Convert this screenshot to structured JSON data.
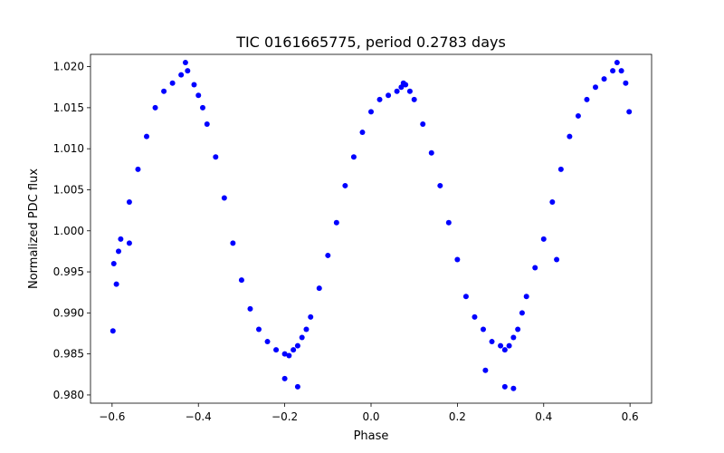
{
  "chart_data": {
    "type": "scatter",
    "title": "TIC 0161665775, period 0.2783 days",
    "xlabel": "Phase",
    "ylabel": "Normalized PDC flux",
    "xlim": [
      -0.65,
      0.65
    ],
    "ylim": [
      0.979,
      1.0215
    ],
    "xticks": [
      -0.6,
      -0.4,
      -0.2,
      0.0,
      0.2,
      0.4,
      0.6
    ],
    "xtick_labels": [
      "−0.6",
      "−0.4",
      "−0.2",
      "0.0",
      "0.2",
      "0.4",
      "0.6"
    ],
    "yticks": [
      0.98,
      0.985,
      0.99,
      0.995,
      1.0,
      1.005,
      1.01,
      1.015,
      1.02
    ],
    "ytick_labels": [
      "0.980",
      "0.985",
      "0.990",
      "0.995",
      "1.000",
      "1.005",
      "1.010",
      "1.015",
      "1.020"
    ],
    "grid": false,
    "marker_color": "#0000ff",
    "series": [
      {
        "x": [
          -0.598,
          -0.596,
          -0.59,
          -0.585,
          -0.58,
          -0.56,
          -0.54,
          -0.52,
          -0.5,
          -0.48,
          -0.46,
          -0.44,
          -0.425,
          -0.41,
          -0.4,
          -0.39,
          -0.38,
          -0.36,
          -0.34,
          -0.32,
          -0.3,
          -0.28,
          -0.26,
          -0.24,
          -0.22,
          -0.2,
          -0.19,
          -0.18,
          -0.17,
          -0.16,
          -0.15,
          -0.14,
          -0.12,
          -0.1,
          -0.08,
          -0.06,
          -0.04,
          -0.02,
          0.0,
          0.02,
          0.04,
          0.06,
          0.07,
          0.08,
          0.09,
          0.1,
          0.12,
          0.14,
          0.16,
          0.18,
          0.2,
          0.22,
          0.24,
          0.26,
          0.28,
          0.3,
          0.31,
          0.32,
          0.33,
          0.34,
          0.35,
          0.36,
          0.38,
          0.4,
          0.42,
          0.44,
          0.46,
          0.48,
          0.5,
          0.52,
          0.54,
          0.56,
          0.57,
          0.58,
          0.59,
          0.598,
          -0.43,
          0.075,
          0.31,
          0.33,
          -0.56,
          -0.17,
          -0.2,
          0.265,
          0.43
        ],
        "y": [
          0.9878,
          0.996,
          0.9935,
          0.9975,
          0.999,
          1.0035,
          1.0075,
          1.0115,
          1.015,
          1.017,
          1.018,
          1.019,
          1.0195,
          1.0178,
          1.0165,
          1.015,
          1.013,
          1.009,
          1.004,
          0.9985,
          0.994,
          0.9905,
          0.988,
          0.9865,
          0.9855,
          0.985,
          0.9848,
          0.9855,
          0.986,
          0.987,
          0.988,
          0.9895,
          0.993,
          0.997,
          1.001,
          1.0055,
          1.009,
          1.012,
          1.0145,
          1.016,
          1.0165,
          1.017,
          1.0175,
          1.0178,
          1.017,
          1.016,
          1.013,
          1.0095,
          1.0055,
          1.001,
          0.9965,
          0.992,
          0.9895,
          0.988,
          0.9865,
          0.986,
          0.9855,
          0.986,
          0.987,
          0.988,
          0.99,
          0.992,
          0.9955,
          0.999,
          1.0035,
          1.0075,
          1.0115,
          1.014,
          1.016,
          1.0175,
          1.0185,
          1.0195,
          1.0205,
          1.0195,
          1.018,
          1.0145,
          1.0205,
          1.018,
          0.981,
          0.9808,
          0.9985,
          0.981,
          0.982,
          0.983,
          0.9965
        ]
      }
    ]
  }
}
